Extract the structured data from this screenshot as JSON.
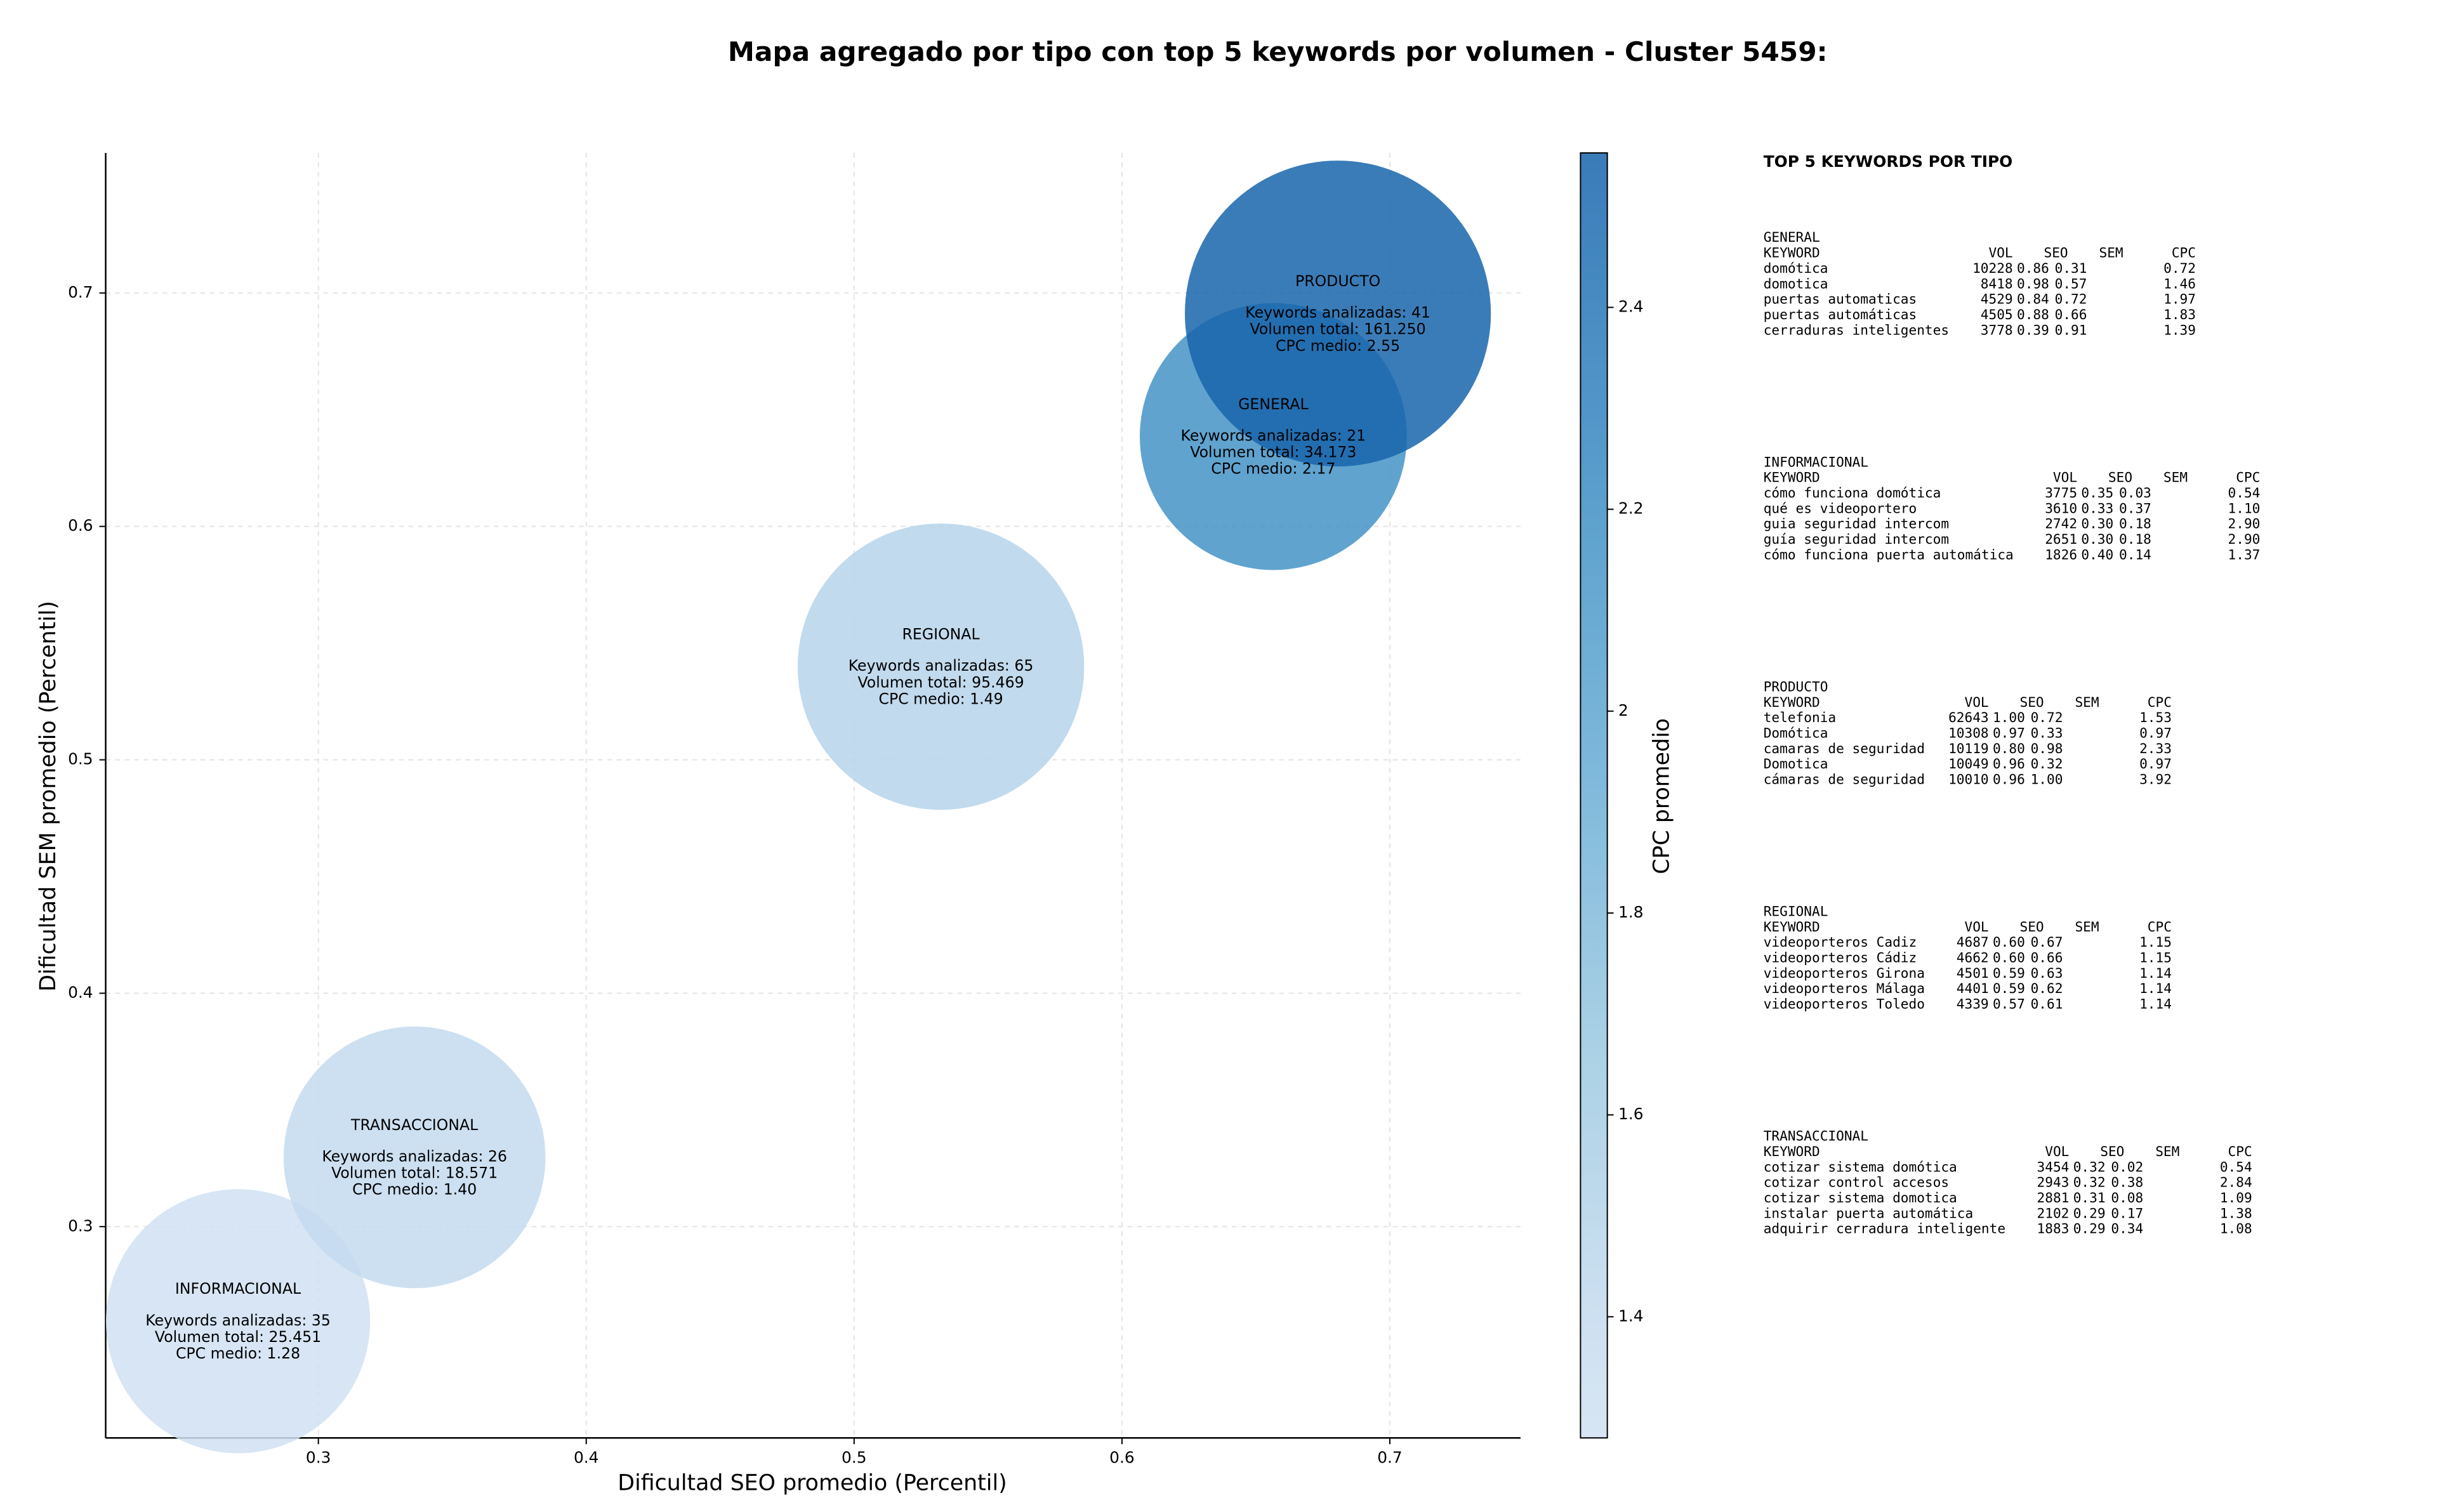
{
  "chart_data": {
    "type": "bubble",
    "title": "Mapa agregado por tipo con top 5 keywords por volumen - Cluster 5459:",
    "xlabel": "Dificultad SEO promedio (Percentil)",
    "ylabel": "Dificultad SEM promedio (Percentil)",
    "colorbar_label": "CPC promedio",
    "categories": [
      "GENERAL",
      "INFORMACIONAL",
      "PRODUCTO",
      "REGIONAL",
      "TRANSACCIONAL"
    ],
    "x": [
      0.6565,
      0.27,
      0.6806,
      0.5324,
      0.3359
    ],
    "y": [
      0.6385,
      0.2595,
      0.6912,
      0.5399,
      0.3297
    ],
    "sizes": [
      34173,
      25451,
      161250,
      95469,
      18571
    ],
    "colors": [
      2.17,
      1.28,
      2.55,
      1.49,
      1.4
    ],
    "annotations": [
      [
        "Keywords analizadas: 21",
        "Volumen total: 34.173",
        "CPC medio: 2.17"
      ],
      [
        "Keywords analizadas: 35",
        "Volumen total: 25.451",
        "CPC medio: 1.28"
      ],
      [
        "Keywords analizadas: 41",
        "Volumen total: 161.250",
        "CPC medio: 2.55"
      ],
      [
        "Keywords analizadas: 65",
        "Volumen total: 95.469",
        "CPC medio: 1.49"
      ],
      [
        "Keywords analizadas: 26",
        "Volumen total: 18.571",
        "CPC medio: 1.40"
      ]
    ],
    "xlim": [
      0.2206,
      0.7488
    ],
    "ylim": [
      0.2095,
      0.76
    ],
    "xticks": [
      0.3,
      0.4,
      0.5,
      0.6,
      0.7
    ],
    "yticks": [
      0.3,
      0.4,
      0.5,
      0.6,
      0.7
    ],
    "clim": [
      1.28,
      2.553
    ],
    "cticks": [
      1.4,
      1.6,
      1.8,
      2.0,
      2.2,
      2.4
    ],
    "cmap": "Blues",
    "grid": true
  },
  "keyword_table": {
    "title": "TOP 5 KEYWORDS POR TIPO",
    "columns": [
      "KEYWORD",
      "VOL",
      "SEO",
      "SEM",
      "CPC"
    ],
    "sections": [
      {
        "name": "GENERAL",
        "rows": [
          [
            "domótica",
            "10228",
            "0.86",
            "0.31",
            "0.72"
          ],
          [
            "domotica",
            "8418",
            "0.98",
            "0.57",
            "1.46"
          ],
          [
            "puertas automaticas",
            "4529",
            "0.84",
            "0.72",
            "1.97"
          ],
          [
            "puertas automáticas",
            "4505",
            "0.88",
            "0.66",
            "1.83"
          ],
          [
            "cerraduras inteligentes",
            "3778",
            "0.39",
            "0.91",
            "1.39"
          ]
        ]
      },
      {
        "name": "INFORMACIONAL",
        "rows": [
          [
            "cómo funciona domótica",
            "3775",
            "0.35",
            "0.03",
            "0.54"
          ],
          [
            "qué es videoportero",
            "3610",
            "0.33",
            "0.37",
            "1.10"
          ],
          [
            "guia seguridad intercom",
            "2742",
            "0.30",
            "0.18",
            "2.90"
          ],
          [
            "guía seguridad intercom",
            "2651",
            "0.30",
            "0.18",
            "2.90"
          ],
          [
            "cómo funciona puerta automática",
            "1826",
            "0.40",
            "0.14",
            "1.37"
          ]
        ]
      },
      {
        "name": "PRODUCTO",
        "rows": [
          [
            "telefonia",
            "62643",
            "1.00",
            "0.72",
            "1.53"
          ],
          [
            "Domótica",
            "10308",
            "0.97",
            "0.33",
            "0.97"
          ],
          [
            "camaras de seguridad",
            "10119",
            "0.80",
            "0.98",
            "2.33"
          ],
          [
            "Domotica",
            "10049",
            "0.96",
            "0.32",
            "0.97"
          ],
          [
            "cámaras de seguridad",
            "10010",
            "0.96",
            "1.00",
            "3.92"
          ]
        ]
      },
      {
        "name": "REGIONAL",
        "rows": [
          [
            "videoporteros Cadiz",
            "4687",
            "0.60",
            "0.67",
            "1.15"
          ],
          [
            "videoporteros Cádiz",
            "4662",
            "0.60",
            "0.66",
            "1.15"
          ],
          [
            "videoporteros Girona",
            "4501",
            "0.59",
            "0.63",
            "1.14"
          ],
          [
            "videoporteros Málaga",
            "4401",
            "0.59",
            "0.62",
            "1.14"
          ],
          [
            "videoporteros Toledo",
            "4339",
            "0.57",
            "0.61",
            "1.14"
          ]
        ]
      },
      {
        "name": "TRANSACCIONAL",
        "rows": [
          [
            "cotizar sistema domótica",
            "3454",
            "0.32",
            "0.02",
            "0.54"
          ],
          [
            "cotizar control accesos",
            "2943",
            "0.32",
            "0.38",
            "2.84"
          ],
          [
            "cotizar sistema domotica",
            "2881",
            "0.31",
            "0.08",
            "1.09"
          ],
          [
            "instalar puerta automática",
            "2102",
            "0.29",
            "0.17",
            "1.38"
          ],
          [
            "adquirir cerradura inteligente",
            "1883",
            "0.29",
            "0.34",
            "1.08"
          ]
        ]
      }
    ]
  }
}
